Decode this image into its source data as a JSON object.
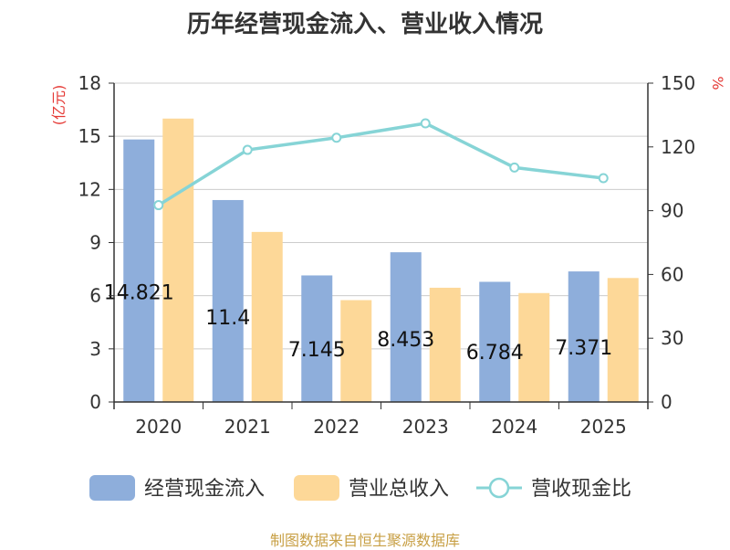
{
  "title": "历年经营现金流入、营业收入情况",
  "source": "制图数据来自恒生聚源数据库",
  "colors": {
    "cash_inflow": "#8eaedb",
    "revenue": "#fdd898",
    "ratio": "#86d4d6",
    "unit": "#e53935"
  },
  "chart_data": {
    "type": "bar",
    "categories": [
      "2020",
      "2021",
      "2022",
      "2023",
      "2024",
      "2025"
    ],
    "series": [
      {
        "name": "经营现金流入",
        "axis": "left",
        "values": [
          14.821,
          11.4,
          7.145,
          8.453,
          6.784,
          7.371
        ],
        "labels": [
          "14.821",
          "11.4",
          "7.145",
          "8.453",
          "6.784",
          "7.371"
        ]
      },
      {
        "name": "营业总收入",
        "axis": "left",
        "values": [
          16.0,
          9.6,
          5.75,
          6.45,
          6.15,
          7.0
        ]
      },
      {
        "name": "营收现金比",
        "type": "line",
        "axis": "right",
        "values": [
          92.6,
          118.6,
          124.3,
          131.1,
          110.3,
          105.3
        ]
      }
    ],
    "y_left": {
      "unit": "(亿元)",
      "ylim": [
        0,
        18
      ],
      "ticks": [
        "0",
        "3",
        "6",
        "9",
        "12",
        "15",
        "18"
      ]
    },
    "y_right": {
      "unit": "%",
      "ylim": [
        0,
        150
      ],
      "ticks": [
        "0",
        "30",
        "60",
        "90",
        "120",
        "150"
      ]
    },
    "grid": true,
    "legend_position": "bottom"
  }
}
